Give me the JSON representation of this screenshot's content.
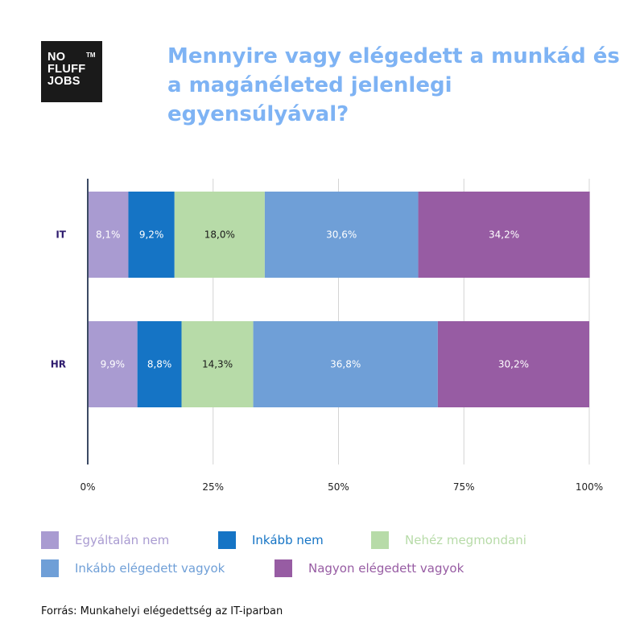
{
  "logo": {
    "line1": "NO",
    "line2": "FLUFF",
    "line3": "JOBS",
    "tm": "TM"
  },
  "title": "Mennyire vagy elégedett a munkád és a magánéleted jelenlegi egyensúlyával?",
  "source": "Forrás: Munkahelyi elégedettség az IT-iparban",
  "colors": {
    "title": "#7eb3f4",
    "series": [
      "#a99bd1",
      "#1574c5",
      "#b7dba8",
      "#6f9fd7",
      "#975ca3"
    ],
    "label_text": [
      "#ffffff",
      "#ffffff",
      "#1a1a1a",
      "#ffffff",
      "#ffffff"
    ],
    "legend_text": [
      "#a99bd1",
      "#1574c5",
      "#b7dba8",
      "#6f9fd7",
      "#975ca3"
    ]
  },
  "chart_data": {
    "type": "bar",
    "orientation": "horizontal",
    "stacked": true,
    "categories": [
      "IT",
      "HR"
    ],
    "series": [
      {
        "name": "Egyáltalán nem",
        "values": [
          8.1,
          9.9
        ],
        "labels": [
          "8,1%",
          "9,9%"
        ]
      },
      {
        "name": "Inkább nem",
        "values": [
          9.2,
          8.8
        ],
        "labels": [
          "9,2%",
          "8,8%"
        ]
      },
      {
        "name": "Nehéz megmondani",
        "values": [
          18.0,
          14.3
        ],
        "labels": [
          "18,0%",
          "14,3%"
        ]
      },
      {
        "name": "Inkább elégedett vagyok",
        "values": [
          30.6,
          36.8
        ],
        "labels": [
          "30,6%",
          "36,8%"
        ]
      },
      {
        "name": "Nagyon elégedett vagyok",
        "values": [
          34.2,
          30.2
        ],
        "labels": [
          "34,2%",
          "30,2%"
        ]
      }
    ],
    "xlim": [
      0,
      100
    ],
    "xticks": [
      "0%",
      "25%",
      "50%",
      "75%",
      "100%"
    ],
    "grid": true,
    "legend_position": "bottom"
  }
}
